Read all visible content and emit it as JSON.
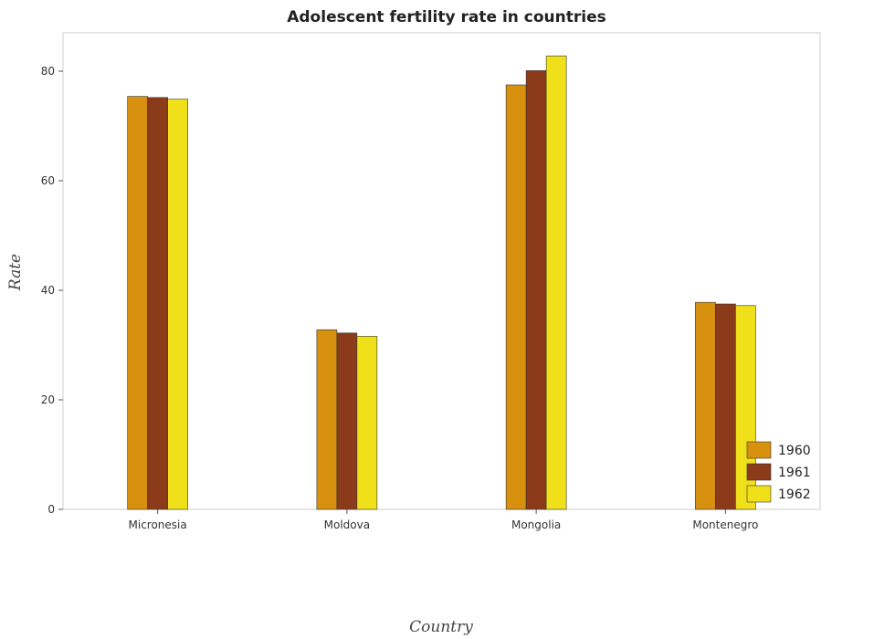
{
  "chart_data": {
    "type": "bar",
    "title": "Adolescent fertility rate in countries",
    "xlabel": "Country",
    "ylabel": "Rate",
    "categories": [
      "Micronesia",
      "Moldova",
      "Mongolia",
      "Montenegro"
    ],
    "series": [
      {
        "name": "1960",
        "color": "#d8900f",
        "values": [
          75.4,
          32.8,
          77.5,
          37.8
        ]
      },
      {
        "name": "1961",
        "color": "#8b3a1a",
        "values": [
          75.2,
          32.2,
          80.1,
          37.5
        ]
      },
      {
        "name": "1962",
        "color": "#f0e01a",
        "values": [
          74.9,
          31.6,
          82.8,
          37.2
        ]
      }
    ],
    "yticks": [
      0,
      20,
      40,
      60,
      80
    ],
    "ylim": [
      0,
      87
    ],
    "grid": false,
    "legend_position": "bottom-right"
  }
}
